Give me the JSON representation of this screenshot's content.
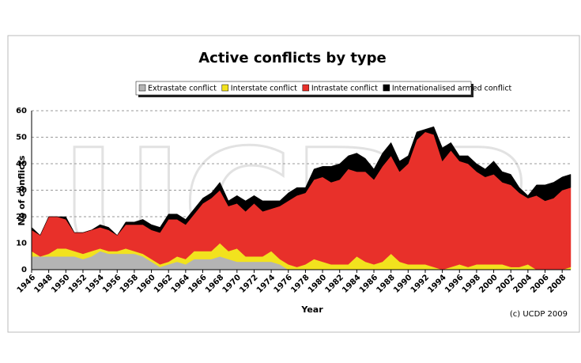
{
  "chart_data": {
    "type": "stacked_area",
    "title": "Active conflicts by type",
    "watermark": "UCDP",
    "y_label": "No of conflicts",
    "x_label": "Year",
    "credit": "(c) UCDP 2009",
    "categories": [
      "1946",
      null,
      "1948",
      null,
      "1950",
      null,
      "1952",
      null,
      "1954",
      null,
      "1956",
      null,
      "1958",
      null,
      "1960",
      null,
      "1962",
      null,
      "1964",
      null,
      "1966",
      null,
      "1968",
      null,
      "1970",
      null,
      "1972",
      null,
      "1974",
      null,
      "1976",
      null,
      "1978",
      null,
      "1980",
      null,
      "1982",
      null,
      "1984",
      null,
      "1986",
      null,
      "1988",
      null,
      "1990",
      null,
      "1992",
      null,
      "1994",
      null,
      "1996",
      null,
      "1998",
      null,
      "2000",
      null,
      "2002",
      null,
      "2004",
      null,
      "2006",
      null,
      "2008",
      null
    ],
    "series": [
      {
        "name": "Extrastate conflict",
        "color": "#b4b4b4",
        "values": [
          5,
          5,
          5,
          5,
          5,
          5,
          4,
          5,
          7,
          6,
          6,
          6,
          6,
          5,
          3,
          1,
          2,
          3,
          2,
          4,
          4,
          4,
          5,
          4,
          3,
          3,
          3,
          3,
          3,
          2,
          0,
          0,
          0,
          0,
          0,
          0,
          0,
          0,
          0,
          0,
          0,
          0,
          0,
          0,
          0,
          0,
          0,
          0,
          0,
          0,
          0,
          0,
          0,
          0,
          0,
          0,
          0,
          0,
          0,
          0,
          0,
          0,
          0,
          0
        ]
      },
      {
        "name": "Interstate conflict",
        "color": "#f2e21e",
        "values": [
          2,
          0,
          1,
          3,
          3,
          2,
          2,
          2,
          1,
          1,
          1,
          2,
          1,
          1,
          1,
          1,
          1,
          2,
          2,
          3,
          3,
          3,
          5,
          3,
          5,
          2,
          2,
          2,
          4,
          2,
          2,
          1,
          2,
          4,
          3,
          2,
          2,
          2,
          5,
          3,
          2,
          3,
          6,
          3,
          2,
          2,
          2,
          1,
          0,
          1,
          2,
          1,
          2,
          2,
          2,
          2,
          1,
          1,
          2,
          0,
          0,
          0,
          0,
          1
        ]
      },
      {
        "name": "Intrastate conflict",
        "color": "#e8302a",
        "values": [
          8,
          8,
          14,
          12,
          11,
          7,
          8,
          8,
          8,
          8,
          6,
          9,
          10,
          11,
          11,
          12,
          16,
          14,
          13,
          14,
          18,
          20,
          20,
          17,
          17,
          17,
          20,
          17,
          16,
          20,
          24,
          27,
          27,
          30,
          32,
          31,
          32,
          36,
          32,
          34,
          32,
          36,
          37,
          34,
          38,
          47,
          50,
          50,
          41,
          44,
          39,
          39,
          35,
          33,
          34,
          31,
          31,
          28,
          25,
          28,
          26,
          27,
          30,
          30
        ]
      },
      {
        "name": "Internationalised armed conflict",
        "color": "#000000",
        "values": [
          1,
          0,
          0,
          0,
          1,
          0,
          0,
          0,
          1,
          1,
          0,
          1,
          1,
          2,
          2,
          2,
          2,
          2,
          2,
          2,
          2,
          2,
          3,
          2,
          3,
          4,
          3,
          4,
          3,
          2,
          3,
          3,
          2,
          4,
          4,
          6,
          6,
          5,
          7,
          5,
          4,
          5,
          5,
          4,
          3,
          3,
          1,
          3,
          5,
          3,
          2,
          3,
          3,
          3,
          5,
          4,
          4,
          2,
          1,
          4,
          6,
          6,
          5,
          5
        ]
      }
    ],
    "ylim": [
      0,
      60
    ],
    "yticks": [
      0,
      10,
      20,
      30,
      40,
      50,
      60
    ],
    "grid": true
  }
}
